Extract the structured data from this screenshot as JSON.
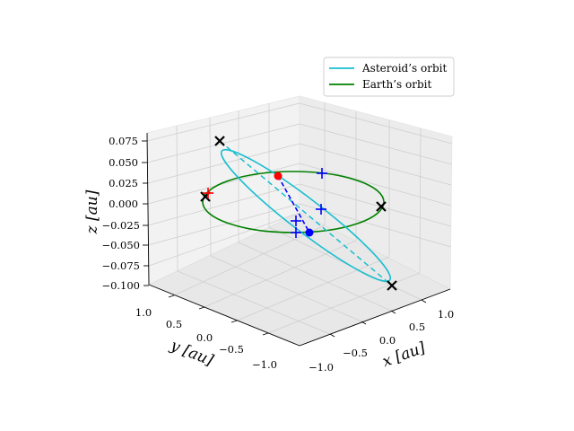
{
  "chart_data": {
    "type": "line",
    "projection": "3d",
    "grid": true,
    "legend_position": "top-right",
    "xlabel": "x [au]",
    "ylabel": "y [au]",
    "zlabel": "z [au]",
    "xlim": [
      -1.2,
      1.2
    ],
    "ylim": [
      -1.2,
      1.2
    ],
    "zlim": [
      -0.1,
      0.08
    ],
    "x_ticks": [
      "−1.0",
      "−0.5",
      "0.0",
      "0.5",
      "1.0"
    ],
    "y_ticks": [
      "1.0",
      "0.5",
      "0.0",
      "−0.5",
      "−1.0"
    ],
    "z_ticks": [
      "0.075",
      "0.050",
      "0.025",
      "0.000",
      "−0.025",
      "−0.050",
      "−0.075",
      "−0.100"
    ],
    "series": [
      {
        "name": "Asteroid’s orbit",
        "color": "#17becf",
        "style": "solid",
        "description_shape": "tilted ellipse",
        "semi_major_axis": 1.15,
        "semi_minor_axis": 0.25,
        "inclination_z_max": 0.075
      },
      {
        "name": "Earth’s orbit",
        "color": "#008000",
        "style": "solid",
        "description_shape": "circle",
        "radius": 1.0
      }
    ],
    "line_of_nodes": {
      "color": "#17becf",
      "style": "dashed"
    },
    "asteroid_earth_link": {
      "color": "#0000ff",
      "style": "dashed"
    },
    "markers": {
      "red_dot": {
        "color": "#ff0000",
        "x": 0.2,
        "y": 0.2,
        "z": 0.035
      },
      "blue_dot": {
        "color": "#0000ff",
        "x": 0.1,
        "y": -0.7,
        "z": -0.03
      },
      "black_crosses": [
        {
          "x": -0.7,
          "y": 0.8,
          "z": 0.075
        },
        {
          "x": 0.8,
          "y": -0.7,
          "z": -0.095
        },
        {
          "x": -0.7,
          "y": 0.7,
          "z": 0.0
        },
        {
          "x": 0.7,
          "y": -0.7,
          "z": 0.0
        }
      ],
      "blue_plus": [
        {
          "x": 0.8,
          "y": 0.5,
          "z": 0.0
        },
        {
          "x": 0.4,
          "y": -0.2,
          "z": 0.0
        },
        {
          "x": -0.2,
          "y": -0.3,
          "z": 0.0
        },
        {
          "x": -0.4,
          "y": -0.7,
          "z": 0.0
        }
      ],
      "red_plus": [
        {
          "x": -0.9,
          "y": 0.9,
          "z": 0.0
        }
      ]
    }
  }
}
